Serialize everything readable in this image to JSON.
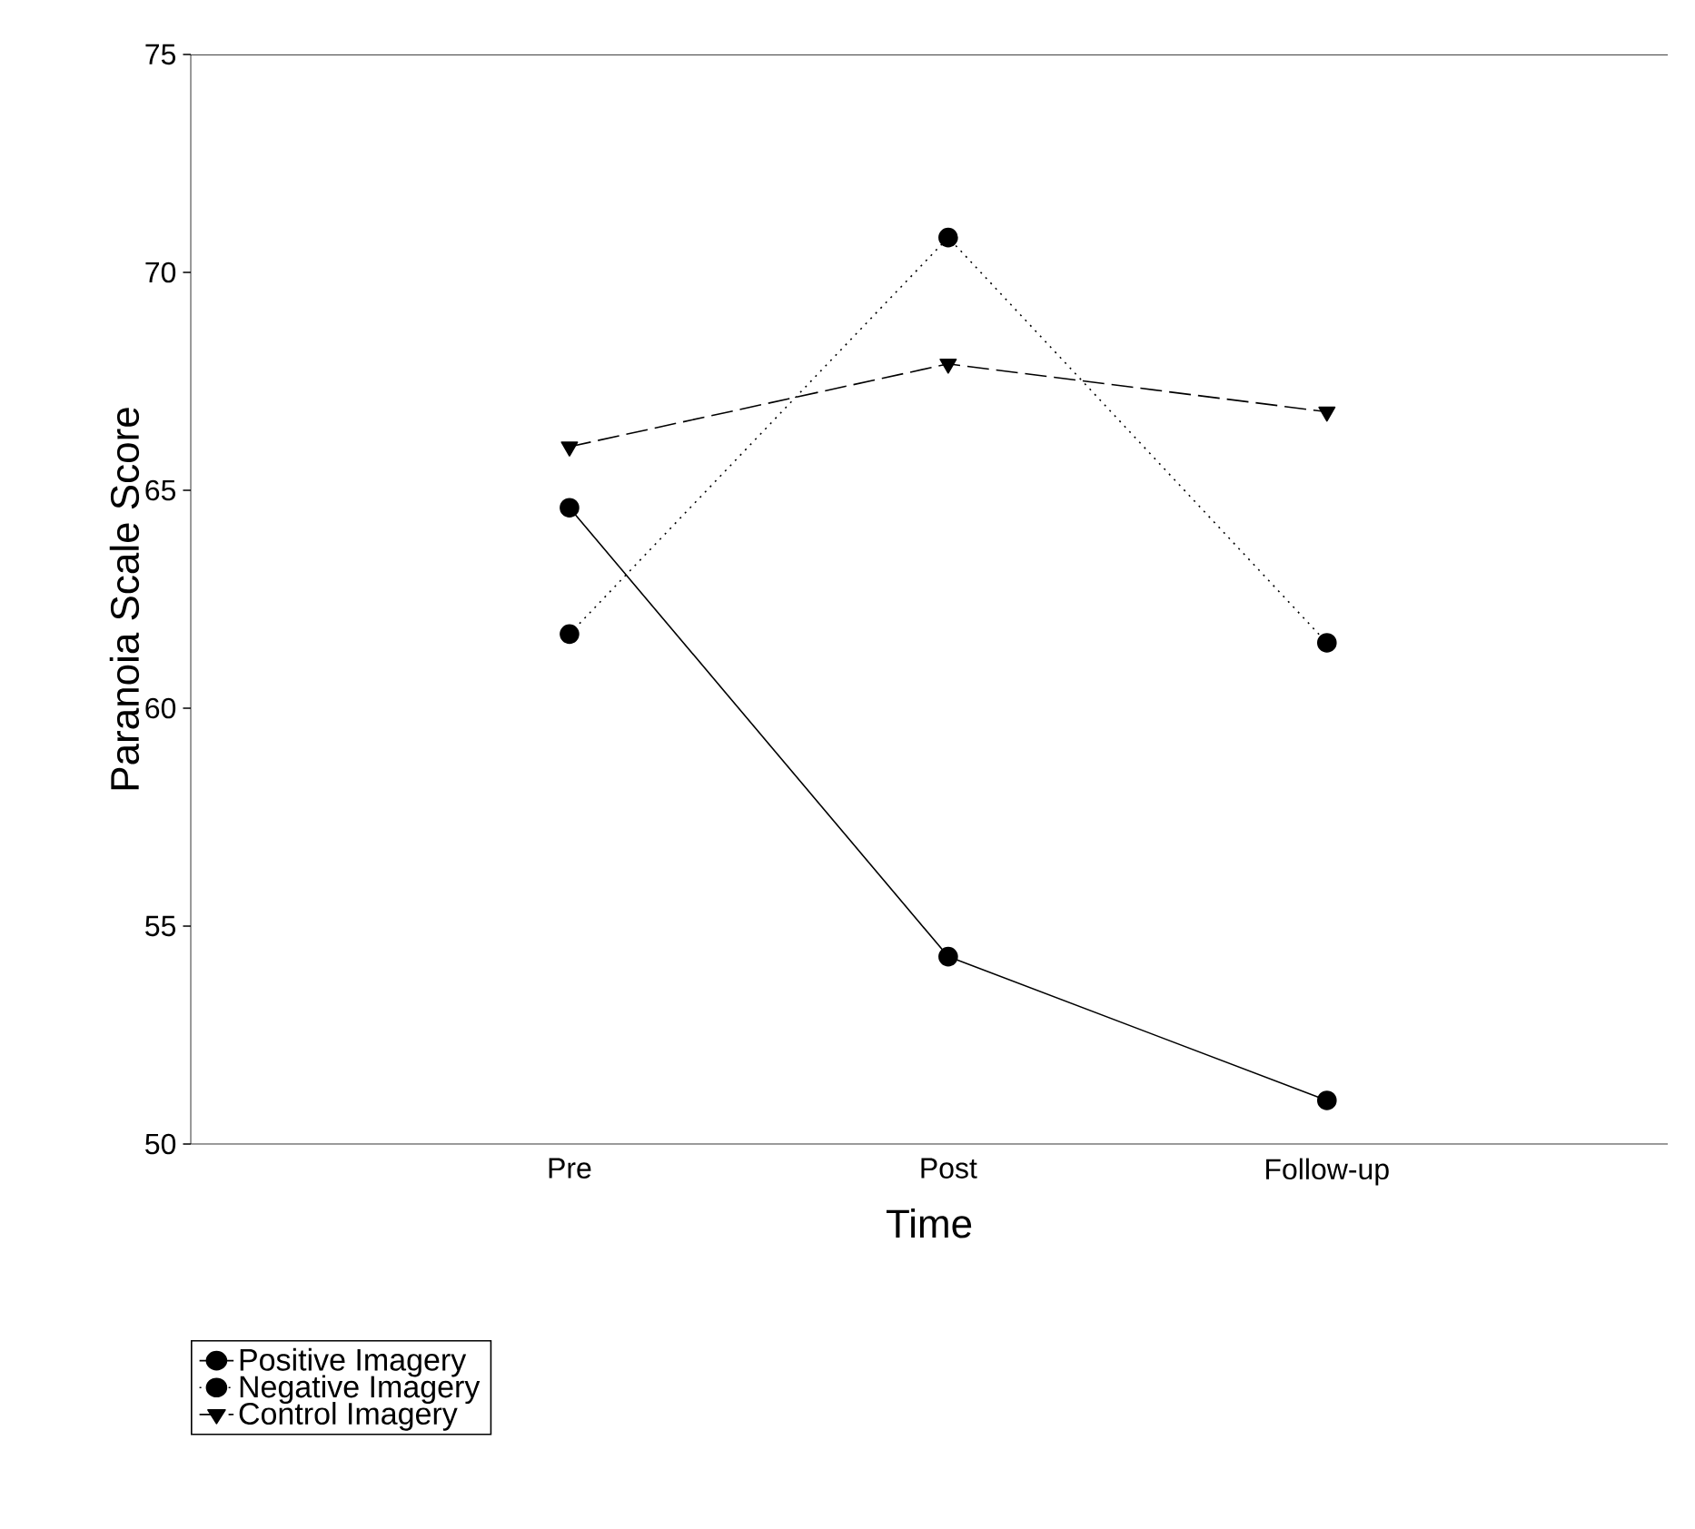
{
  "chart_data": {
    "type": "line",
    "xlabel": "Time",
    "ylabel": "Paranoia Scale Score",
    "categories": [
      "Pre",
      "Post",
      "Follow-up"
    ],
    "series": [
      {
        "name": "Positive Imagery",
        "color": "#000000",
        "values": [
          64.6,
          54.3,
          51.0
        ],
        "marker": "circle",
        "line_style": "solid"
      },
      {
        "name": "Negative Imagery",
        "color": "#000000",
        "values": [
          61.7,
          70.8,
          61.5
        ],
        "marker": "circle",
        "line_style": "dotted"
      },
      {
        "name": "Control Imagery",
        "color": "#000000",
        "values": [
          66.0,
          67.9,
          66.8
        ],
        "marker": "triangle",
        "line_style": "dashed"
      }
    ],
    "ylim": [
      50,
      75
    ],
    "yticks": [
      50,
      55,
      60,
      65,
      70,
      75
    ],
    "grid": false,
    "legend": "bottom left"
  }
}
